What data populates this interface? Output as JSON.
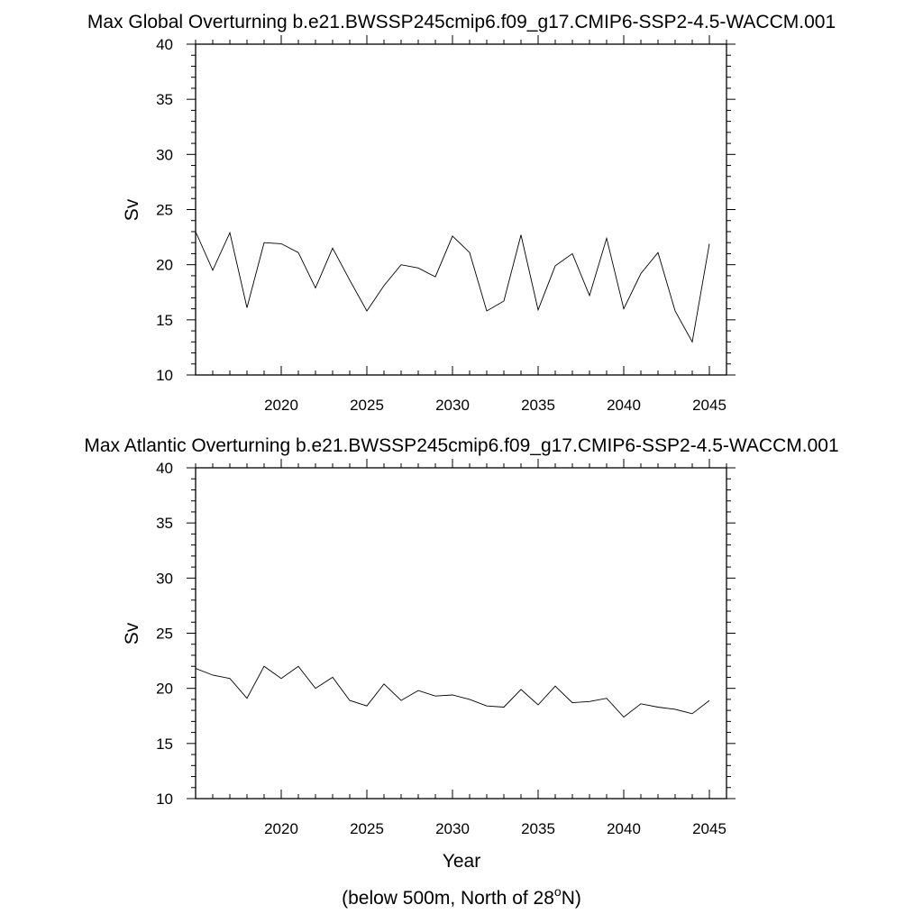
{
  "chart_data": [
    {
      "type": "line",
      "title": "Max Global Overturning b.e21.BWSSP245cmip6.f09_g17.CMIP6-SSP2-4.5-WACCM.001",
      "ylabel": "Sv",
      "xlabel": "",
      "xlim": [
        2015,
        2046
      ],
      "ylim": [
        10,
        40
      ],
      "x_ticks": [
        2020,
        2025,
        2030,
        2035,
        2040,
        2045
      ],
      "x_tick_labels": [
        "2020",
        "2025",
        "2030",
        "2035",
        "2040",
        "2045"
      ],
      "y_ticks": [
        10,
        15,
        20,
        25,
        30,
        35,
        40
      ],
      "y_tick_labels": [
        "10",
        "15",
        "20",
        "25",
        "30",
        "35",
        "40"
      ],
      "grid": false,
      "series": [
        {
          "x": [
            2015,
            2016,
            2017,
            2018,
            2019,
            2020,
            2021,
            2022,
            2023,
            2024,
            2025,
            2026,
            2027,
            2028,
            2029,
            2030,
            2031,
            2032,
            2033,
            2034,
            2035,
            2036,
            2037,
            2038,
            2039,
            2040,
            2041,
            2042,
            2043,
            2044,
            2045
          ],
          "y": [
            23.0,
            19.5,
            22.9,
            16.1,
            22.0,
            21.9,
            21.1,
            17.9,
            21.5,
            18.6,
            15.8,
            18.1,
            20.0,
            19.7,
            18.9,
            22.6,
            21.1,
            15.8,
            16.7,
            22.7,
            15.9,
            19.9,
            21.0,
            17.2,
            22.4,
            16.0,
            19.2,
            21.1,
            15.8,
            13.0,
            21.9
          ]
        }
      ]
    },
    {
      "type": "line",
      "title": "Max Atlantic Overturning b.e21.BWSSP245cmip6.f09_g17.CMIP6-SSP2-4.5-WACCM.001",
      "ylabel": "Sv",
      "xlabel": "Year",
      "xlim": [
        2015,
        2046
      ],
      "ylim": [
        10,
        40
      ],
      "x_ticks": [
        2020,
        2025,
        2030,
        2035,
        2040,
        2045
      ],
      "x_tick_labels": [
        "2020",
        "2025",
        "2030",
        "2035",
        "2040",
        "2045"
      ],
      "y_ticks": [
        10,
        15,
        20,
        25,
        30,
        35,
        40
      ],
      "y_tick_labels": [
        "10",
        "15",
        "20",
        "25",
        "30",
        "35",
        "40"
      ],
      "grid": false,
      "series": [
        {
          "x": [
            2015,
            2016,
            2017,
            2018,
            2019,
            2020,
            2021,
            2022,
            2023,
            2024,
            2025,
            2026,
            2027,
            2028,
            2029,
            2030,
            2031,
            2032,
            2033,
            2034,
            2035,
            2036,
            2037,
            2038,
            2039,
            2040,
            2041,
            2042,
            2043,
            2044,
            2045
          ],
          "y": [
            21.8,
            21.2,
            20.9,
            19.1,
            22.0,
            20.9,
            22.0,
            20.0,
            21.0,
            18.9,
            18.4,
            20.4,
            18.9,
            19.8,
            19.3,
            19.4,
            19.0,
            18.4,
            18.3,
            19.9,
            18.5,
            20.2,
            18.7,
            18.8,
            19.1,
            17.4,
            18.6,
            18.3,
            18.1,
            17.7,
            18.9
          ]
        }
      ]
    }
  ],
  "footnote": {
    "prefix": "(below 500m, North of 28",
    "superscript": "o",
    "suffix": "N)"
  }
}
